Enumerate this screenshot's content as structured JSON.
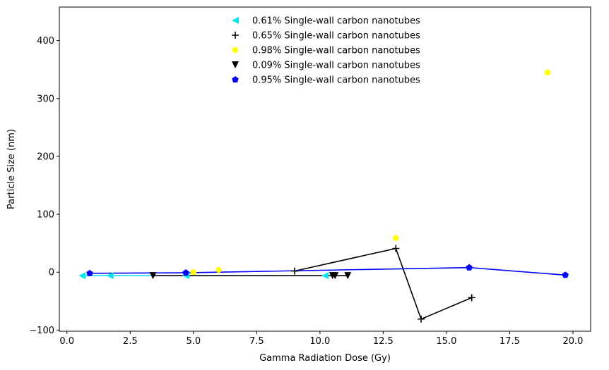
{
  "chart_data": {
    "type": "line",
    "xlabel": "Gamma Radiation Dose (Gy)",
    "ylabel": "Particle Size (nm)",
    "xlim": [
      -0.3,
      20.7
    ],
    "ylim": [
      -102,
      458
    ],
    "xticks": [
      0,
      2.5,
      5,
      7.5,
      10,
      12.5,
      15,
      17.5,
      20
    ],
    "xtick_labels": [
      "0.0",
      "2.5",
      "5.0",
      "7.5",
      "10.0",
      "12.5",
      "15.0",
      "17.5",
      "20.0"
    ],
    "yticks": [
      -100,
      0,
      100,
      200,
      300,
      400
    ],
    "ytick_labels": [
      "−100",
      "0",
      "100",
      "200",
      "300",
      "400"
    ],
    "grid": false,
    "legend_position": "upper-center",
    "series": [
      {
        "name": "0.61% Single-wall carbon nanotubes",
        "marker": "triangle-left",
        "color": "#00e5ee",
        "line": true,
        "points": [
          [
            0.6,
            -6
          ],
          [
            1.7,
            -6
          ],
          [
            4.7,
            -6
          ],
          [
            10.2,
            -6
          ]
        ]
      },
      {
        "name": "0.65% Single-wall carbon nanotubes",
        "marker": "plus",
        "color": "#000000",
        "line": true,
        "points": [
          [
            9.0,
            2
          ],
          [
            13.0,
            41
          ],
          [
            14.0,
            -81
          ],
          [
            16.0,
            -44
          ]
        ]
      },
      {
        "name": "0.98% Single-wall carbon nanotubes",
        "marker": "circle",
        "color": "#ffff00",
        "line": false,
        "points": [
          [
            5.0,
            0
          ],
          [
            6.0,
            4
          ],
          [
            13.0,
            59
          ],
          [
            19.0,
            345
          ]
        ]
      },
      {
        "name": "0.09% Single-wall carbon nanotubes",
        "marker": "triangle-down",
        "color": "#000000",
        "line": true,
        "points": [
          [
            3.4,
            -6
          ],
          [
            10.5,
            -6
          ],
          [
            10.6,
            -6
          ],
          [
            11.1,
            -6
          ]
        ]
      },
      {
        "name": "0.95% Single-wall carbon nanotubes",
        "marker": "pentagon",
        "color": "#0000ff",
        "line": true,
        "points": [
          [
            0.9,
            -2
          ],
          [
            4.7,
            -1
          ],
          [
            15.9,
            8
          ],
          [
            19.7,
            -5
          ]
        ]
      }
    ]
  }
}
